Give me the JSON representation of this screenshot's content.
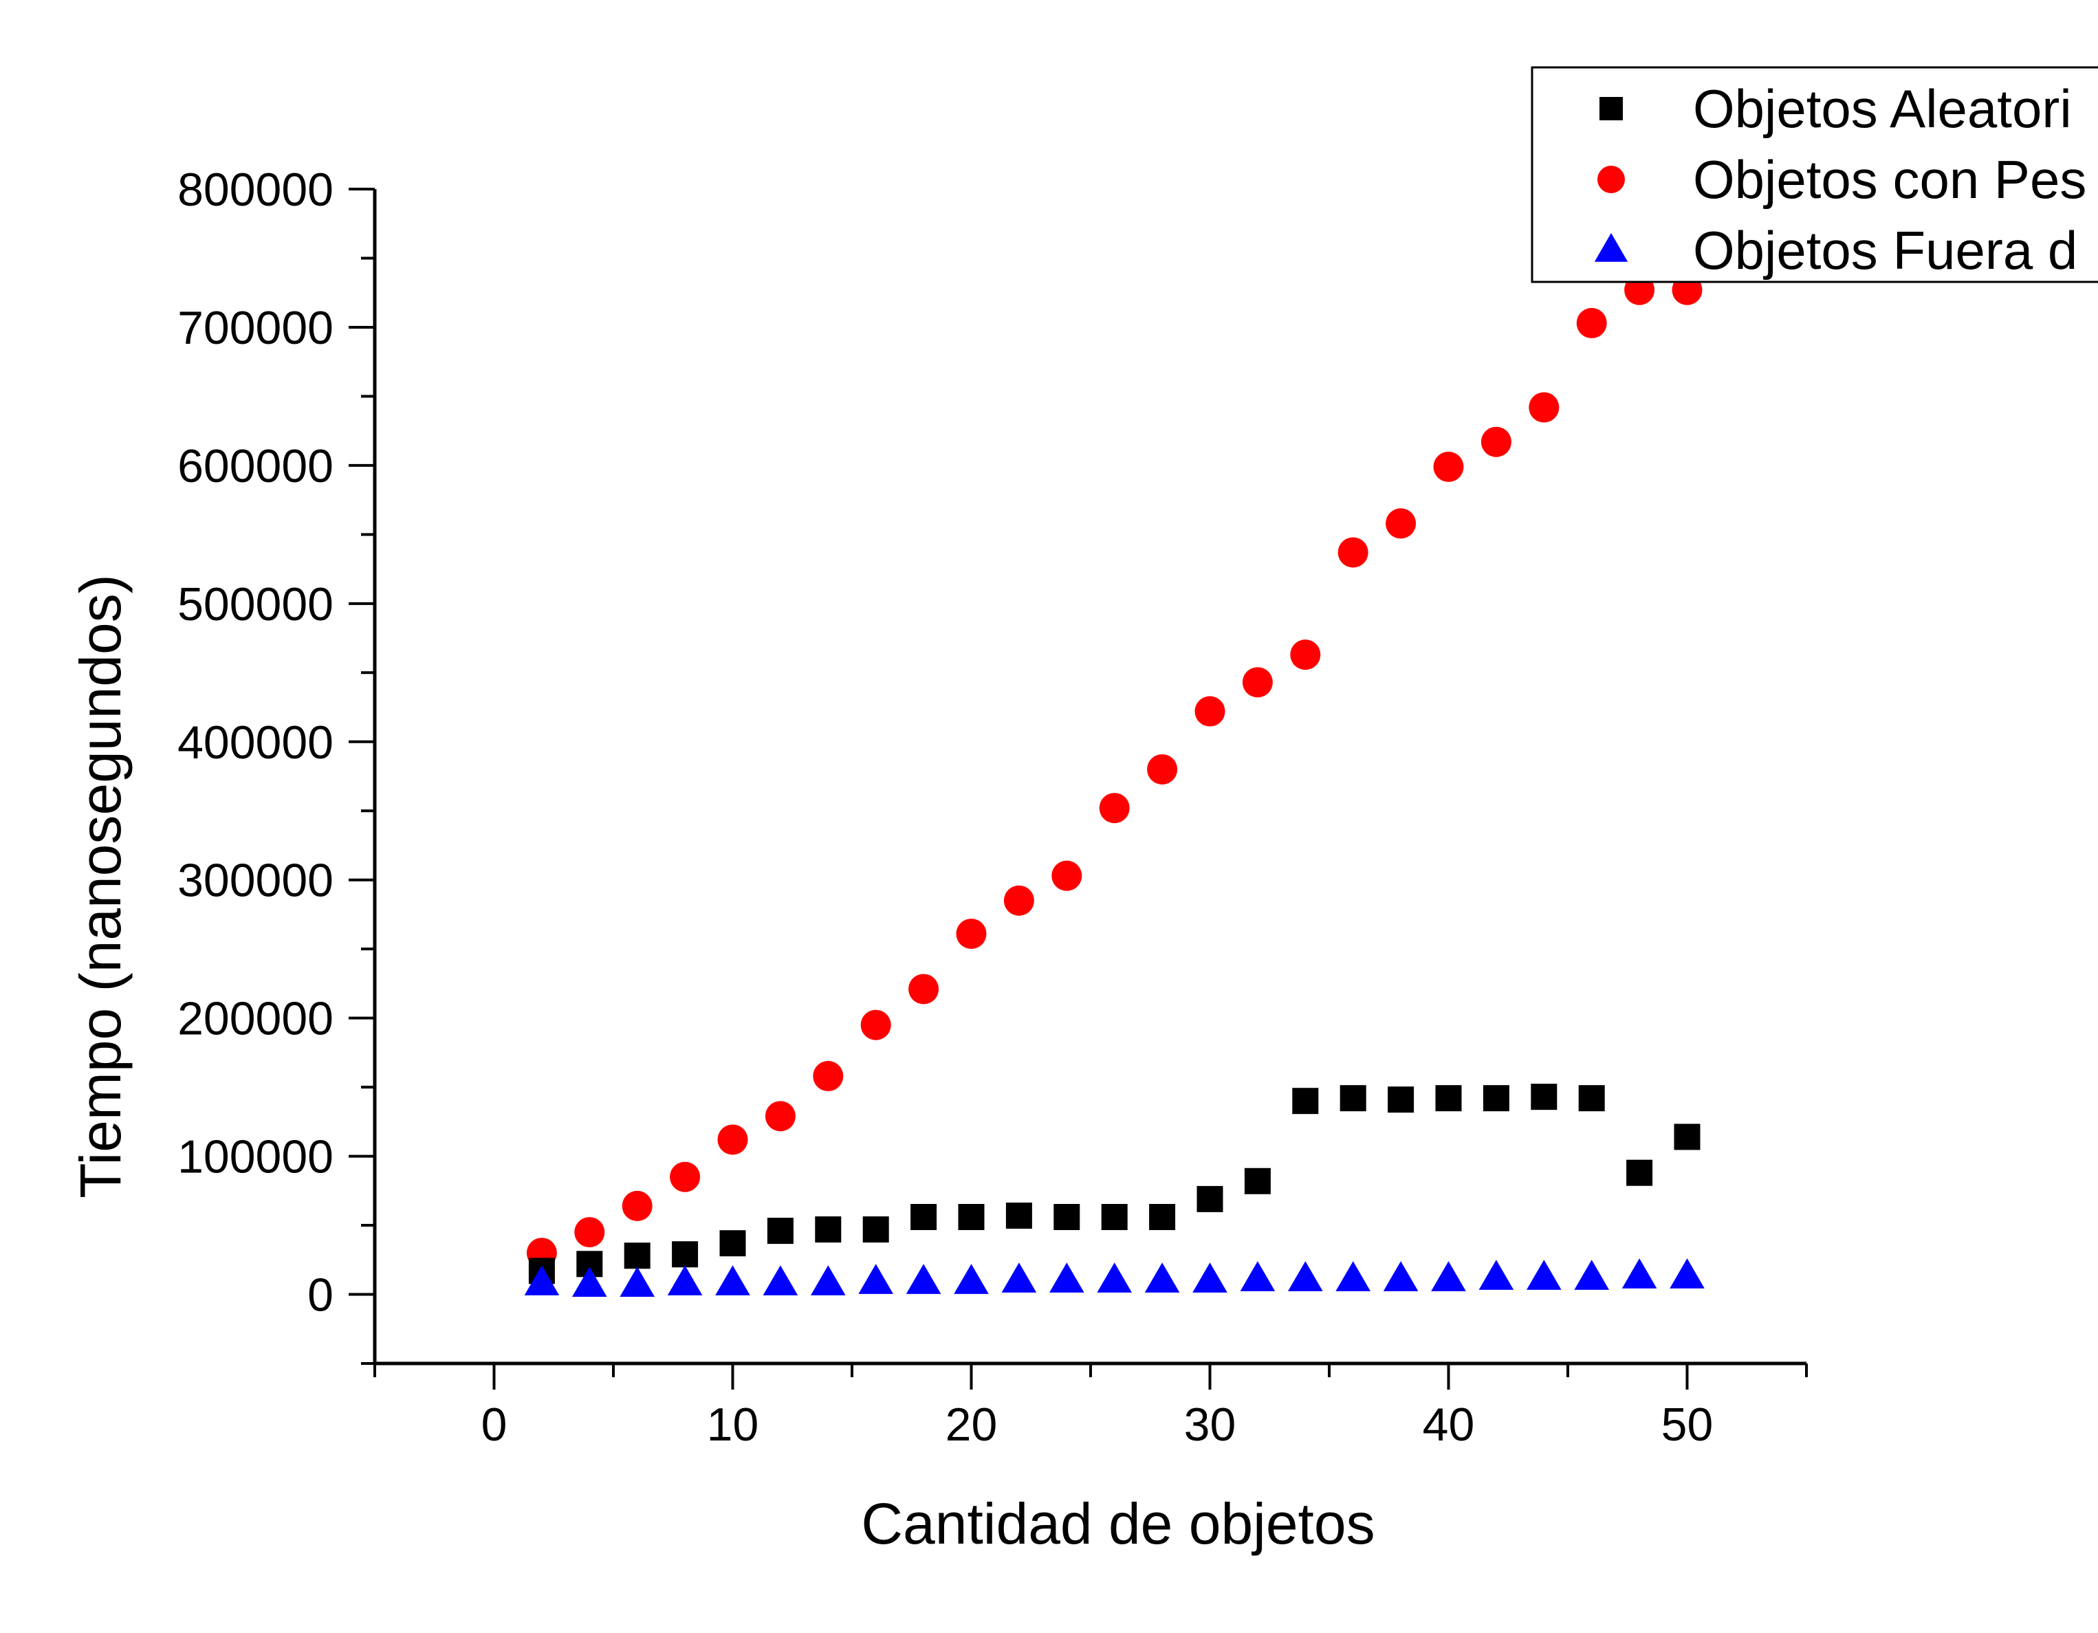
{
  "chart_data": {
    "type": "scatter",
    "title": "",
    "xlabel": "Cantidad de objetos",
    "ylabel": "Tiempo (nanosegundos)",
    "xlim": [
      -5,
      55
    ],
    "ylim": [
      -50000,
      800000
    ],
    "xticks": [
      0,
      10,
      20,
      30,
      40,
      50
    ],
    "xtick_labels": [
      "0",
      "10",
      "20",
      "30",
      "40",
      "50"
    ],
    "yticks": [
      0,
      100000,
      200000,
      300000,
      400000,
      500000,
      600000,
      700000,
      800000
    ],
    "ytick_labels": [
      "0",
      "100000",
      "200000",
      "300000",
      "400000",
      "500000",
      "600000",
      "700000",
      "800000"
    ],
    "grid": false,
    "legend_position": "top-right",
    "series": [
      {
        "name": "Objetos Aleatori",
        "marker": "square",
        "color": "#000000",
        "x": [
          2,
          4,
          6,
          8,
          10,
          12,
          14,
          16,
          18,
          20,
          22,
          24,
          26,
          28,
          30,
          32,
          34,
          36,
          38,
          40,
          42,
          44,
          46,
          48,
          50
        ],
        "y": [
          17000,
          22000,
          28000,
          29000,
          37000,
          46000,
          47000,
          47000,
          56000,
          56000,
          57000,
          56000,
          56000,
          56000,
          69000,
          82000,
          140000,
          142000,
          141000,
          142000,
          142000,
          143000,
          142000,
          88000,
          114000
        ]
      },
      {
        "name": "Objetos con Pes",
        "marker": "circle",
        "color": "#ff0000",
        "x": [
          2,
          4,
          6,
          8,
          10,
          12,
          14,
          16,
          18,
          20,
          22,
          24,
          26,
          28,
          30,
          32,
          34,
          36,
          38,
          40,
          42,
          44,
          46,
          48,
          50
        ],
        "y": [
          30000,
          45000,
          64000,
          85000,
          112000,
          129000,
          158000,
          195000,
          221000,
          261000,
          285000,
          303000,
          352000,
          380000,
          422000,
          443000,
          463000,
          537000,
          558000,
          599000,
          617000,
          642000,
          703000,
          727000,
          727000
        ]
      },
      {
        "name": "Objetos Fuera d",
        "marker": "triangle",
        "color": "#0000ff",
        "x": [
          2,
          4,
          6,
          8,
          10,
          12,
          14,
          16,
          18,
          20,
          22,
          24,
          26,
          28,
          30,
          32,
          34,
          36,
          38,
          40,
          42,
          44,
          46,
          48,
          50
        ],
        "y": [
          8000,
          7000,
          7000,
          8000,
          8000,
          8000,
          8000,
          9000,
          9000,
          9000,
          10000,
          10000,
          10000,
          10000,
          10000,
          11000,
          11000,
          11000,
          11000,
          11000,
          12000,
          12000,
          12000,
          13000,
          13000
        ]
      }
    ]
  }
}
